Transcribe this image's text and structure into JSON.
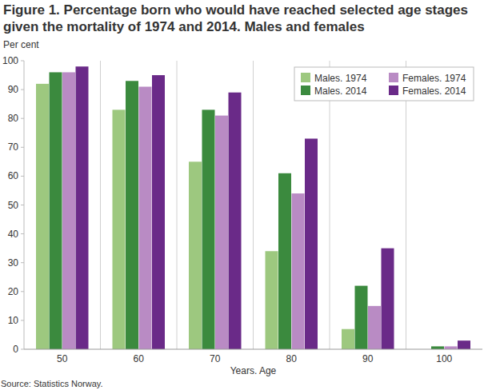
{
  "chart_data": {
    "type": "bar",
    "title": "Figure 1. Percentage born who would have reached selected age stages given the mortality of 1974 and 2014. Males and females",
    "y_label": "Per cent",
    "x_label": "Years. Age",
    "source": "Source: Statistics Norway.",
    "categories": [
      "50",
      "60",
      "70",
      "80",
      "90",
      "100"
    ],
    "series": [
      {
        "name": "Males. 1974",
        "color": "#9dc87f",
        "values": [
          92,
          83,
          65,
          34,
          7,
          0
        ]
      },
      {
        "name": "Males. 2014",
        "color": "#3b8a3e",
        "values": [
          96,
          93,
          83,
          61,
          22,
          1
        ]
      },
      {
        "name": "Females. 1974",
        "color": "#b98bc4",
        "values": [
          96,
          91,
          81,
          54,
          15,
          1
        ]
      },
      {
        "name": "Females. 2014",
        "color": "#6a2a88",
        "values": [
          98,
          95,
          89,
          73,
          35,
          3
        ]
      }
    ],
    "ylim": [
      0,
      100
    ],
    "yticks": [
      0,
      10,
      20,
      30,
      40,
      50,
      60,
      70,
      80,
      90,
      100
    ],
    "grid": true,
    "legend": "top-right"
  }
}
